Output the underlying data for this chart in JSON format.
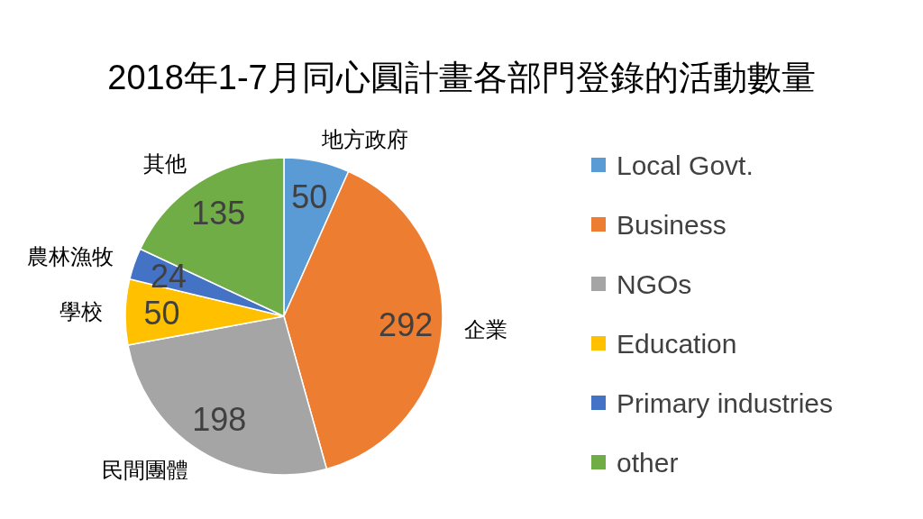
{
  "chart_data": {
    "type": "pie",
    "title": "2018年1-7月同心圓計畫各部門登錄的活動數量",
    "categories": [
      "Local Govt.",
      "Business",
      "NGOs",
      "Education",
      "Primary industries",
      "other"
    ],
    "values": [
      50,
      292,
      198,
      50,
      24,
      135
    ],
    "colors": [
      "#5b9bd5",
      "#ed7d31",
      "#a5a5a5",
      "#ffc000",
      "#4472c4",
      "#70ad47"
    ],
    "data_labels": true,
    "legend": "right",
    "annotations": [
      {
        "text": "地方政府",
        "x": "Local Govt."
      },
      {
        "text": "企業",
        "x": "Business"
      },
      {
        "text": "民間團體",
        "x": "NGOs"
      },
      {
        "text": "學校",
        "x": "Education"
      },
      {
        "text": "農林漁牧",
        "x": "Primary industries"
      },
      {
        "text": "其他",
        "x": "other"
      }
    ]
  }
}
